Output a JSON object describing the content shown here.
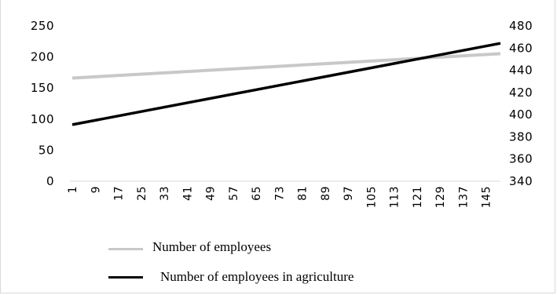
{
  "chart_data": {
    "type": "line",
    "title": "",
    "xlabel": "",
    "ylabel": "",
    "x_tick_labels": [
      "1",
      "9",
      "17",
      "25",
      "33",
      "41",
      "49",
      "57",
      "65",
      "73",
      "81",
      "89",
      "97",
      "105",
      "113",
      "121",
      "129",
      "137",
      "145"
    ],
    "x_range": [
      1,
      150
    ],
    "y_left": {
      "ticks": [
        "0",
        "50",
        "100",
        "150",
        "200",
        "250"
      ],
      "lim": [
        0,
        250
      ]
    },
    "y_right": {
      "ticks": [
        "340",
        "360",
        "380",
        "400",
        "420",
        "440",
        "460",
        "480"
      ],
      "lim": [
        340,
        480
      ]
    },
    "grid": false,
    "legend_position": "bottom-left",
    "series": [
      {
        "name": "Number of employees",
        "axis": "right",
        "color": "#c8c8c8",
        "x": [
          1,
          150
        ],
        "values": [
          433,
          455
        ]
      },
      {
        "name": "Number of employees in agriculture",
        "axis": "left",
        "color": "#000000",
        "x": [
          1,
          150
        ],
        "values": [
          91,
          222
        ]
      }
    ]
  }
}
